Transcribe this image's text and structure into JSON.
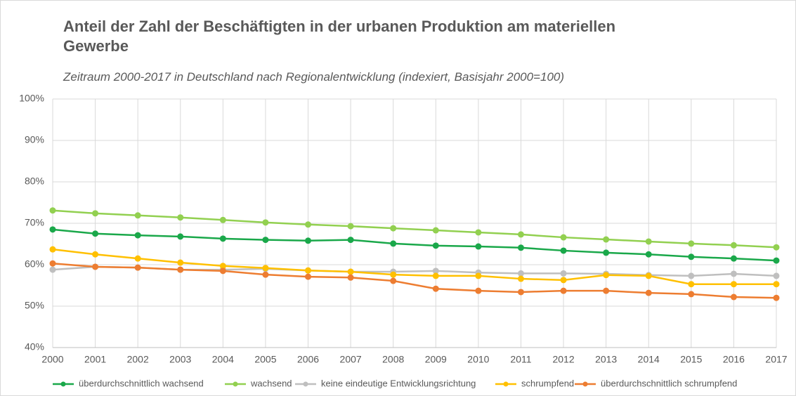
{
  "chart_data": {
    "type": "line",
    "title": "Anteil der Zahl der Beschäftigten in der urbanen Produktion am materiellen Gewerbe",
    "subtitle": "Zeitraum 2000-2017 in Deutschland nach Regionalentwicklung (indexiert, Basisjahr 2000=100)",
    "categories": [
      "2000",
      "2001",
      "2002",
      "2003",
      "2004",
      "2005",
      "2006",
      "2007",
      "2008",
      "2009",
      "2010",
      "2011",
      "2012",
      "2013",
      "2014",
      "2015",
      "2016",
      "2017"
    ],
    "series": [
      {
        "name": "überdurchschnittlich wachsend",
        "color": "#1aa84a",
        "values": [
          68.5,
          67.5,
          67.1,
          66.8,
          66.3,
          66.0,
          65.8,
          66.0,
          65.1,
          64.6,
          64.4,
          64.1,
          63.4,
          62.9,
          62.5,
          61.9,
          61.5,
          61.0
        ]
      },
      {
        "name": "wachsend",
        "color": "#92d050",
        "values": [
          73.1,
          72.4,
          71.9,
          71.4,
          70.8,
          70.2,
          69.7,
          69.3,
          68.8,
          68.3,
          67.8,
          67.3,
          66.6,
          66.1,
          65.6,
          65.1,
          64.7,
          64.2
        ]
      },
      {
        "name": "keine eindeutige Entwicklungsrichtung",
        "color": "#bfbfbf",
        "values": [
          58.8,
          59.5,
          59.3,
          58.8,
          58.8,
          59.0,
          58.6,
          58.3,
          58.3,
          58.5,
          58.1,
          57.9,
          57.9,
          57.8,
          57.5,
          57.3,
          57.8,
          57.3
        ]
      },
      {
        "name": "schrumpfend",
        "color": "#ffc000",
        "values": [
          63.7,
          62.5,
          61.5,
          60.5,
          59.7,
          59.2,
          58.6,
          58.3,
          57.6,
          57.3,
          57.3,
          56.6,
          56.3,
          57.5,
          57.3,
          55.3,
          55.3,
          55.3
        ]
      },
      {
        "name": "überdurchschnittlich schrumpfend",
        "color": "#ed7d31",
        "values": [
          60.3,
          59.5,
          59.3,
          58.8,
          58.5,
          57.6,
          57.1,
          56.9,
          56.1,
          54.2,
          53.7,
          53.4,
          53.7,
          53.7,
          53.2,
          52.9,
          52.2,
          52.0
        ]
      }
    ],
    "ylim": [
      40,
      100
    ],
    "yticks": [
      {
        "value": 40,
        "label": "40%"
      },
      {
        "value": 50,
        "label": "50%"
      },
      {
        "value": 60,
        "label": "60%"
      },
      {
        "value": 70,
        "label": "70%"
      },
      {
        "value": 80,
        "label": "80%"
      },
      {
        "value": 90,
        "label": "90%"
      },
      {
        "value": 100,
        "label": "100%"
      }
    ],
    "grid": true,
    "legend": "bottom"
  }
}
